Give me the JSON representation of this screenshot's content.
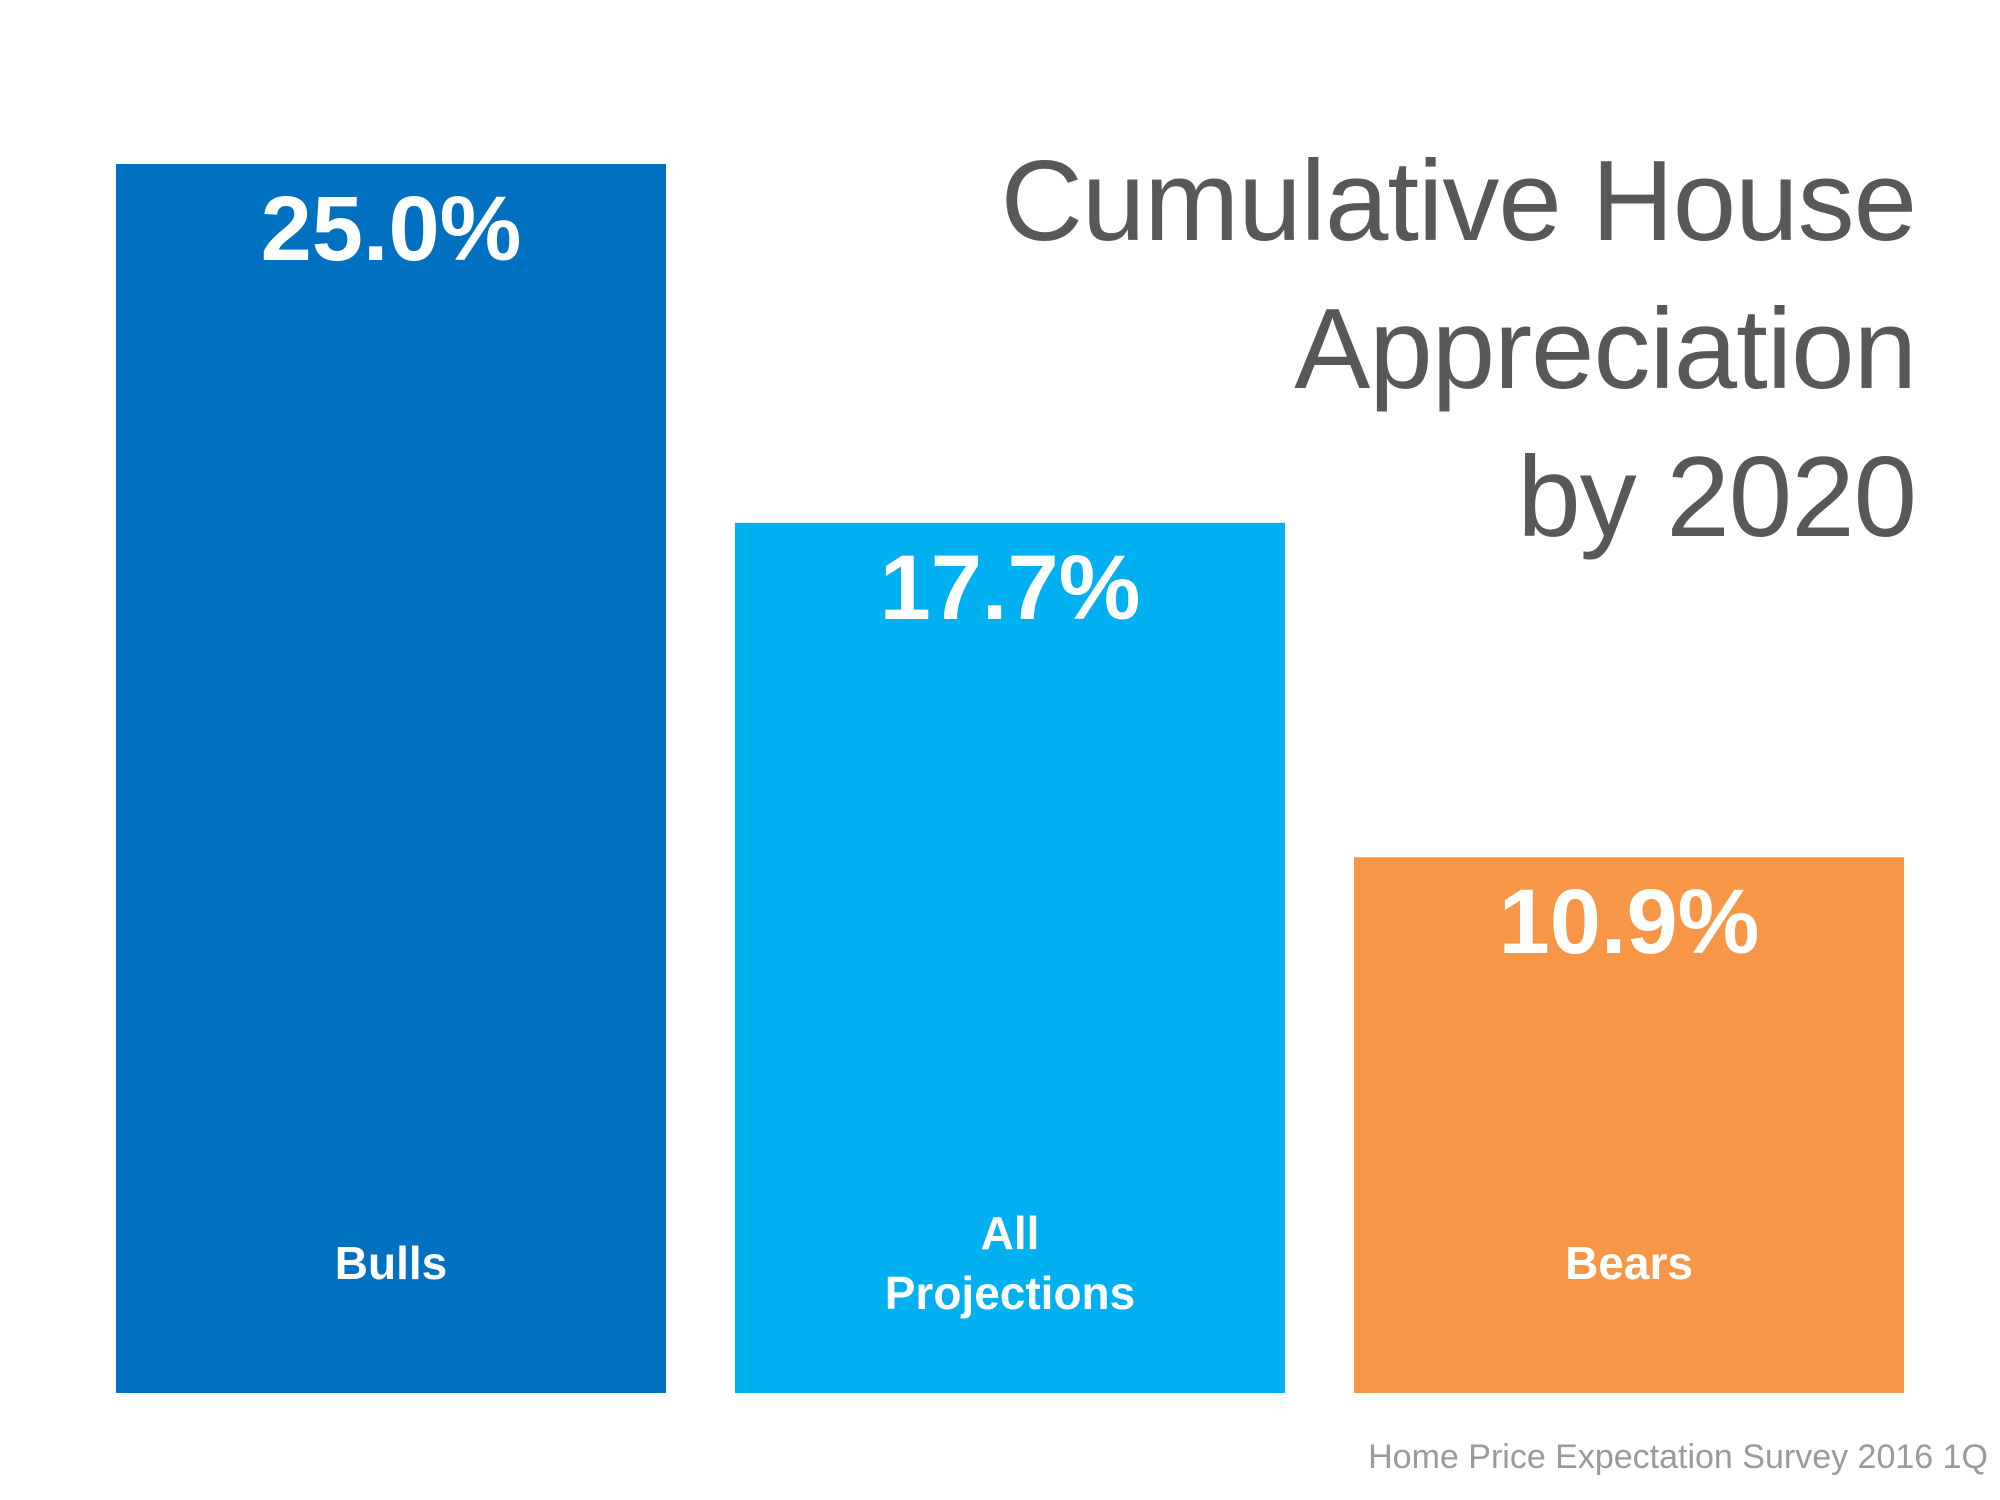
{
  "chart_data": {
    "type": "bar",
    "title": "Cumulative House Appreciation by 2020",
    "title_lines": [
      "Cumulative House",
      "Appreciation",
      "by 2020"
    ],
    "categories": [
      "Bulls",
      "All Projections",
      "Bears"
    ],
    "category_label_lines": [
      [
        "Bulls"
      ],
      [
        "All",
        "Projections"
      ],
      [
        "Bears"
      ]
    ],
    "values": [
      25.0,
      17.7,
      10.9
    ],
    "value_labels": [
      "25.0%",
      "17.7%",
      "10.9%"
    ],
    "colors": [
      "#0071c1",
      "#00b0f0",
      "#f79646"
    ],
    "unit": "%",
    "xlabel": "",
    "ylabel": "",
    "ylim": [
      0,
      25.0
    ],
    "grid": false,
    "axes_visible": false,
    "legend": "none",
    "source": "Home Price Expectation Survey 2016 1Q"
  }
}
